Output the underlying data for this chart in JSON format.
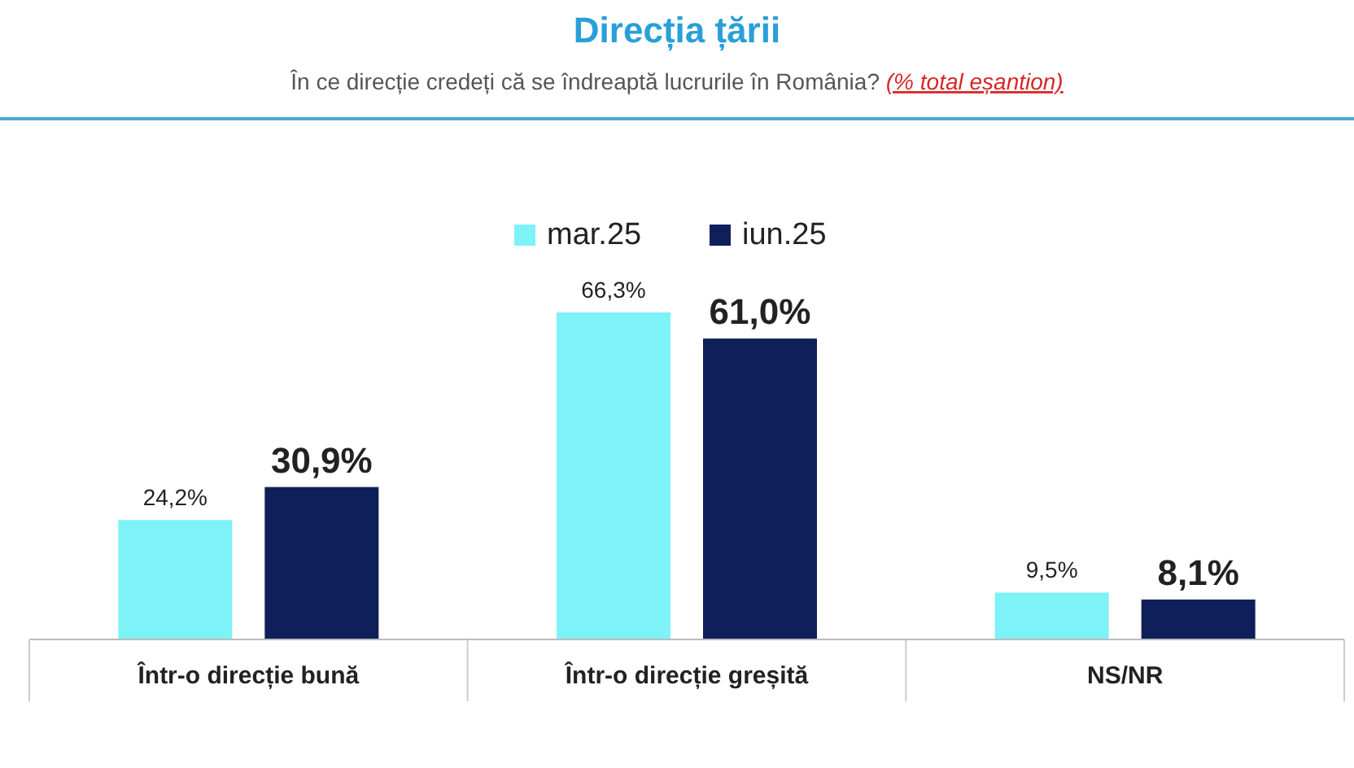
{
  "chart_data": {
    "type": "bar",
    "title": "Direcția țării",
    "subtitle": "În ce direcție credeți că se îndreaptă lucrurile în România? (% total eșantion)",
    "categories": [
      "Într-o direcție bună",
      "Într-o direcție greșită",
      "NS/NR"
    ],
    "series": [
      {
        "name": "mar.25",
        "color": "#7df2f7",
        "values": [
          24.2,
          66.3,
          9.5
        ],
        "value_labels": [
          "24,2%",
          "66,3%",
          "9,5%"
        ]
      },
      {
        "name": "iun.25",
        "color": "#0f1f5a",
        "values": [
          30.9,
          61.0,
          8.1
        ],
        "value_labels": [
          "30,9%",
          "61,0%",
          "8,1%"
        ]
      }
    ],
    "legend": "top",
    "grid": false
  }
}
